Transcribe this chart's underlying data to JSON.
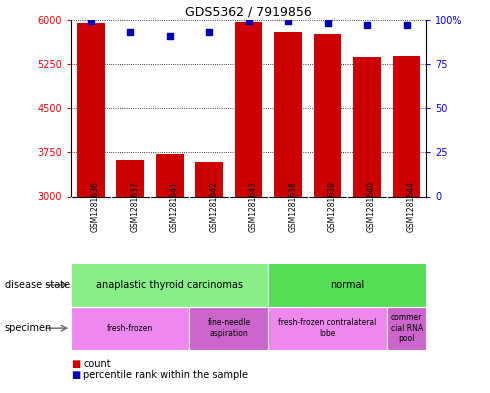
{
  "title": "GDS5362 / 7919856",
  "samples": [
    "GSM1281636",
    "GSM1281637",
    "GSM1281641",
    "GSM1281642",
    "GSM1281643",
    "GSM1281638",
    "GSM1281639",
    "GSM1281640",
    "GSM1281644"
  ],
  "counts": [
    5950,
    3620,
    3720,
    3590,
    5960,
    5790,
    5760,
    5360,
    5380
  ],
  "percentile_ranks": [
    99,
    93,
    91,
    93,
    99,
    99,
    98,
    97,
    97
  ],
  "ylim_left": [
    3000,
    6000
  ],
  "ylim_right": [
    0,
    100
  ],
  "yticks_left": [
    3000,
    3750,
    4500,
    5250,
    6000
  ],
  "yticks_right": [
    0,
    25,
    50,
    75,
    100
  ],
  "bar_color": "#cc0000",
  "dot_color": "#0000bb",
  "bar_width": 0.7,
  "disease_state_groups": [
    {
      "label": "anaplastic thyroid carcinomas",
      "start": 0,
      "end": 5,
      "color": "#88ee88"
    },
    {
      "label": "normal",
      "start": 5,
      "end": 9,
      "color": "#55dd55"
    }
  ],
  "specimen_groups": [
    {
      "label": "fresh-frozen",
      "start": 0,
      "end": 3,
      "color": "#ee88ee"
    },
    {
      "label": "fine-needle\naspiration",
      "start": 3,
      "end": 5,
      "color": "#cc66cc"
    },
    {
      "label": "fresh-frozen contralateral\nlobe",
      "start": 5,
      "end": 8,
      "color": "#ee88ee"
    },
    {
      "label": "commer\ncial RNA\npool",
      "start": 8,
      "end": 9,
      "color": "#cc66cc"
    }
  ],
  "disease_state_label": "disease state",
  "specimen_label": "specimen",
  "legend_count_label": "count",
  "legend_percentile_label": "percentile rank within the sample",
  "tick_label_bg": "#cccccc",
  "border_color": "#000000"
}
